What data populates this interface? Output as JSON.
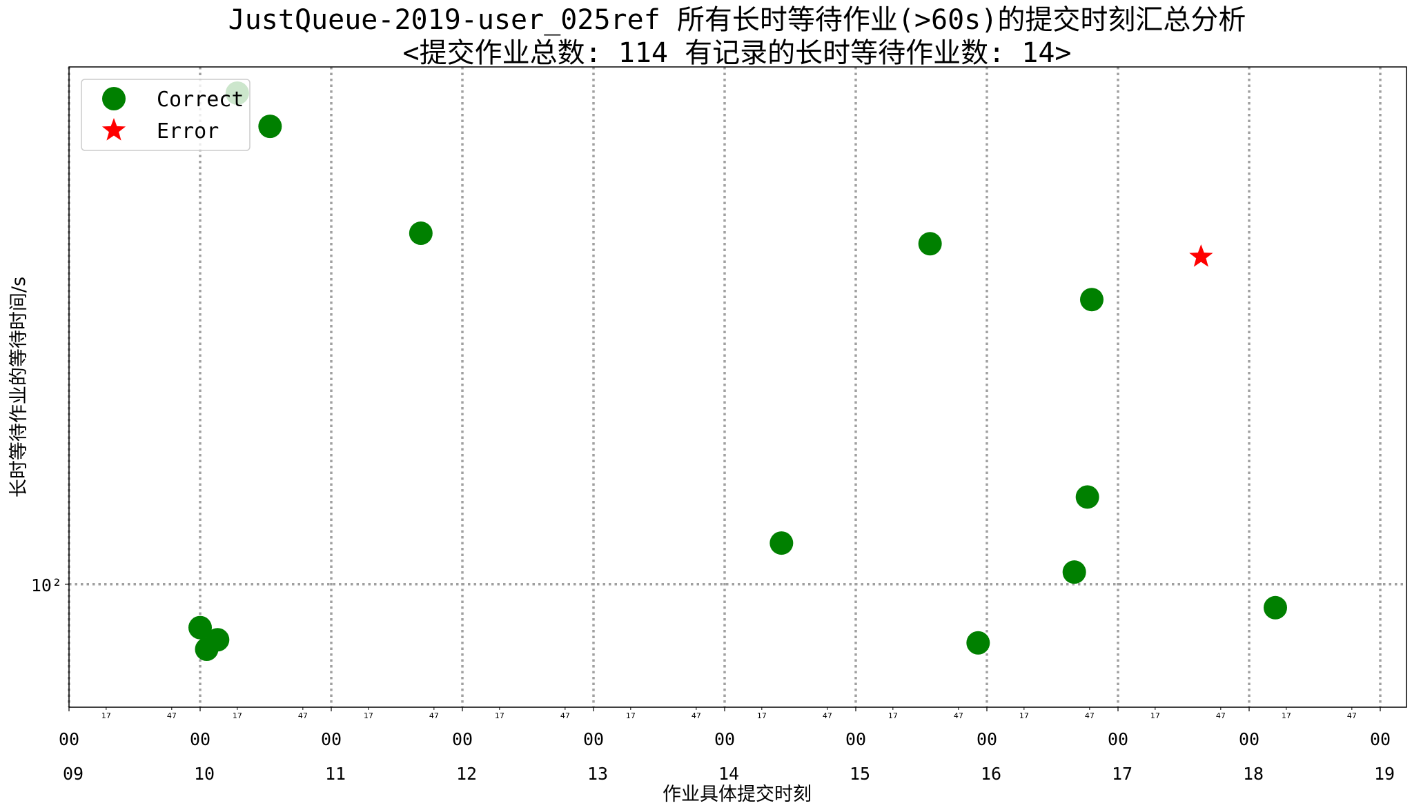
{
  "chart_data": {
    "type": "scatter",
    "title": "JustQueue-2019-user_025ref 所有长时等待作业(>60s)的提交时刻汇总分析",
    "subtitle": "<提交作业总数: 114  有记录的长时等待作业数: 14>",
    "xlabel": "作业具体提交时刻",
    "ylabel": "长时等待作业的等待时间/s",
    "y_scale": "log",
    "y_tick_label": "10²",
    "y_tick_value": 100,
    "ylim": [
      61,
      800
    ],
    "xlim_hours": [
      9.0,
      19.2
    ],
    "grid": true,
    "legend_position": "top-left",
    "x_major_ticks": [
      {
        "value": 9,
        "minute": "00",
        "hour": "09"
      },
      {
        "value": 10,
        "minute": "00",
        "hour": "10"
      },
      {
        "value": 11,
        "minute": "00",
        "hour": "11"
      },
      {
        "value": 12,
        "minute": "00",
        "hour": "12"
      },
      {
        "value": 13,
        "minute": "00",
        "hour": "13"
      },
      {
        "value": 14,
        "minute": "00",
        "hour": "14"
      },
      {
        "value": 15,
        "minute": "00",
        "hour": "15"
      },
      {
        "value": 16,
        "minute": "00",
        "hour": "16"
      },
      {
        "value": 17,
        "minute": "00",
        "hour": "17"
      },
      {
        "value": 18,
        "minute": "00",
        "hour": "18"
      },
      {
        "value": 19,
        "minute": "00",
        "hour": "19"
      }
    ],
    "x_minor_ticks": [
      "17",
      "47"
    ],
    "series": [
      {
        "name": "Correct",
        "color": "#008000",
        "marker": "circle",
        "points": [
          {
            "x": "10:00",
            "y": 84
          },
          {
            "x": "10:03",
            "y": 77
          },
          {
            "x": "10:08",
            "y": 80
          },
          {
            "x": "10:17",
            "y": 720
          },
          {
            "x": "10:32",
            "y": 630
          },
          {
            "x": "11:41",
            "y": 410
          },
          {
            "x": "14:26",
            "y": 118
          },
          {
            "x": "15:34",
            "y": 393
          },
          {
            "x": "15:56",
            "y": 79
          },
          {
            "x": "16:40",
            "y": 105
          },
          {
            "x": "16:46",
            "y": 142
          },
          {
            "x": "16:48",
            "y": 314
          },
          {
            "x": "18:12",
            "y": 91
          }
        ]
      },
      {
        "name": "Error",
        "color": "#ff0000",
        "marker": "star",
        "points": [
          {
            "x": "17:38",
            "y": 373
          }
        ]
      }
    ]
  }
}
